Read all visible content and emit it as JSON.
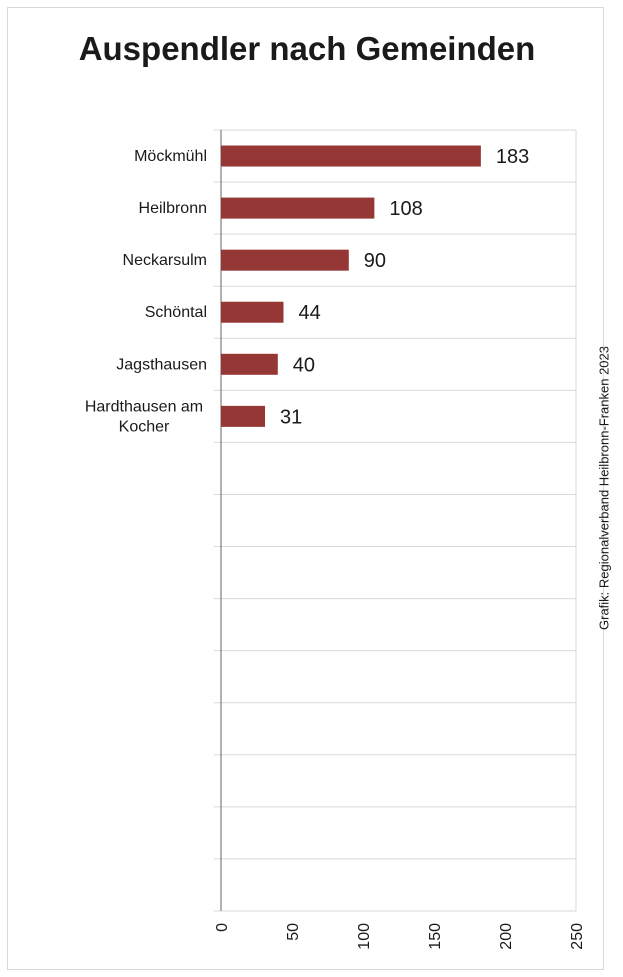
{
  "chart_data": {
    "type": "bar",
    "orientation": "horizontal",
    "title": "Auspendler nach Gemeinden",
    "credit": "Grafik: Regionalverband Heilbronn-Franken 2023",
    "categories": [
      "Möckmühl",
      "Heilbronn",
      "Neckarsulm",
      "Schöntal",
      "Jagsthausen",
      "Hardthausen am Kocher"
    ],
    "category_lines": [
      [
        "Möckmühl"
      ],
      [
        "Heilbronn"
      ],
      [
        "Neckarsulm"
      ],
      [
        "Schöntal"
      ],
      [
        "Jagsthausen"
      ],
      [
        "Hardthausen am",
        "Kocher"
      ]
    ],
    "values": [
      183,
      108,
      90,
      44,
      40,
      31
    ],
    "value_labels": [
      "183",
      "108",
      "90",
      "44",
      "40",
      "31"
    ],
    "xlim": [
      0,
      250
    ],
    "xticks": [
      0,
      50,
      100,
      150,
      200,
      250
    ],
    "xtick_labels": [
      "0",
      "50",
      "100",
      "150",
      "200",
      "250"
    ],
    "slot_count": 15,
    "grid": true,
    "bar_color": "#953735",
    "grid_color": "#d9d9d9",
    "legend": false
  }
}
